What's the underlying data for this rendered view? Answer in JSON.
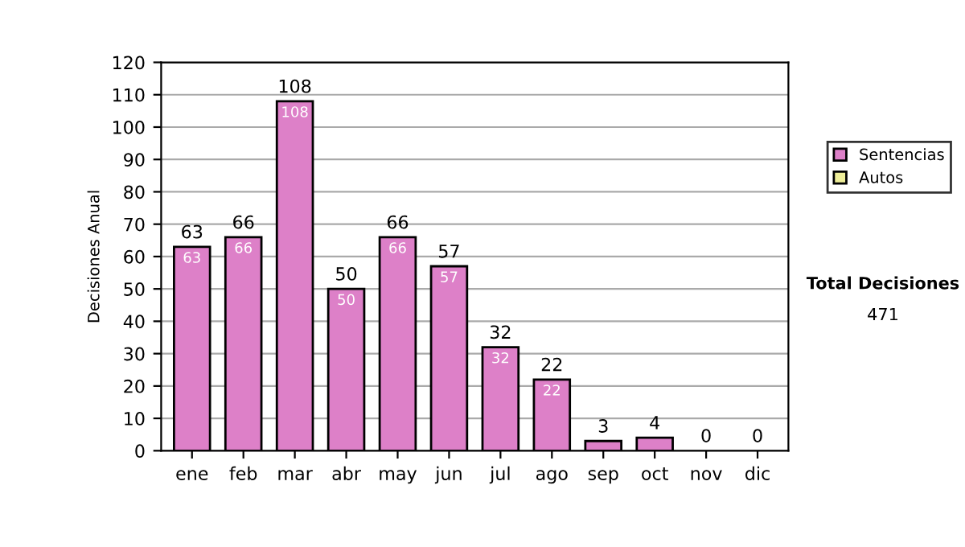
{
  "chart_data": {
    "type": "bar",
    "ylabel": "Decisiones Anual",
    "categories": [
      "ene",
      "feb",
      "mar",
      "abr",
      "may",
      "jun",
      "jul",
      "ago",
      "sep",
      "oct",
      "nov",
      "dic"
    ],
    "series": [
      {
        "name": "Sentencias",
        "color": "#dd80c8",
        "values": [
          63,
          66,
          108,
          50,
          66,
          57,
          32,
          22,
          3,
          4,
          0,
          0
        ],
        "value_labels": [
          "63",
          "66",
          "108",
          "50",
          "66",
          "57",
          "32",
          "22",
          null,
          null,
          null,
          null
        ]
      },
      {
        "name": "Autos",
        "color": "#eeee99",
        "values": [
          null,
          null,
          null,
          null,
          null,
          null,
          null,
          null,
          null,
          null,
          null,
          null
        ]
      }
    ],
    "stacked": true,
    "totals": [
      "63",
      "66",
      "108",
      "50",
      "66",
      "57",
      "32",
      "22",
      "3",
      "4",
      "0",
      "0"
    ],
    "ylim": [
      0,
      120
    ],
    "yticks": [
      0,
      10,
      20,
      30,
      40,
      50,
      60,
      70,
      80,
      90,
      100,
      110,
      120
    ],
    "grid": "y",
    "legend": "right",
    "annotations": [
      "Total Decisiones",
      "471"
    ]
  }
}
